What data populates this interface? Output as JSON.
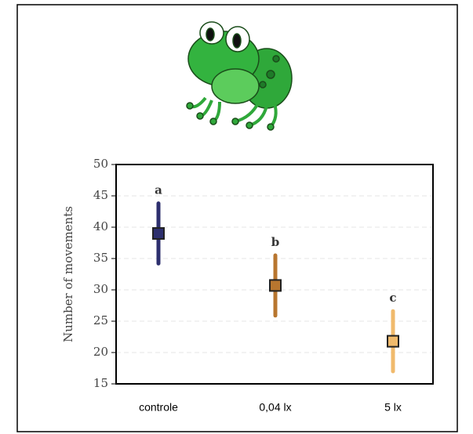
{
  "chart_data": {
    "type": "errorpoint",
    "y_label": "Number of movements",
    "categories": [
      "controle",
      "0,04 lx",
      "5 lx"
    ],
    "values": [
      39,
      30.7,
      21.8
    ],
    "errors": [
      4.8,
      4.8,
      4.8
    ],
    "annotations": [
      "a",
      "b",
      "c"
    ],
    "colors": [
      "#2d2f6e",
      "#b8762f",
      "#f0ba6c"
    ],
    "ylim": [
      15,
      50
    ],
    "yticks": [
      15,
      20,
      25,
      30,
      35,
      40,
      45,
      50
    ],
    "grid": true
  }
}
